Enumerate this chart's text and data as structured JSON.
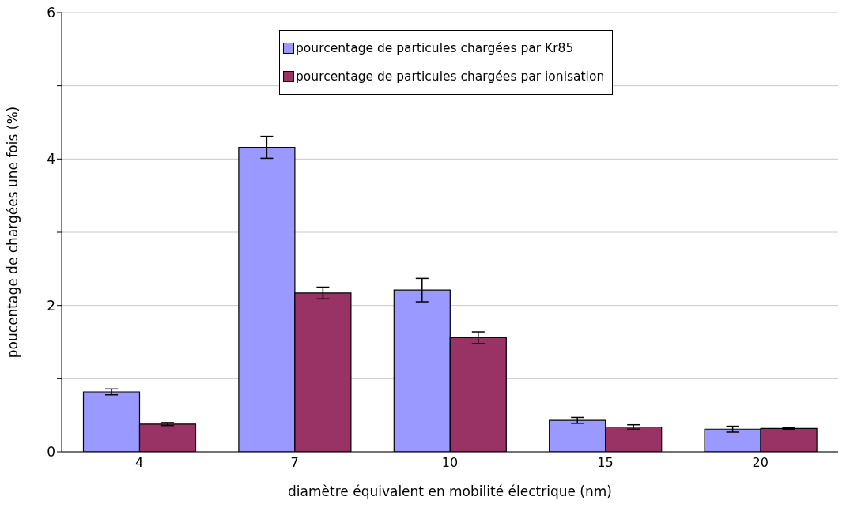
{
  "chart_data": {
    "type": "bar",
    "xlabel": "diamètre équivalent en mobilité électrique (nm)",
    "ylabel": "poucentage de chargées une fois (%)",
    "categories": [
      "4",
      "7",
      "10",
      "15",
      "20"
    ],
    "series": [
      {
        "name": "pourcentage de particules chargées par Kr85",
        "color": "#9999ff",
        "values": [
          0.82,
          4.16,
          2.21,
          0.43,
          0.31
        ],
        "errors": [
          0.04,
          0.15,
          0.16,
          0.04,
          0.04
        ]
      },
      {
        "name": "pourcentage de particules chargées par ionisation",
        "color": "#993366",
        "values": [
          0.38,
          2.17,
          1.56,
          0.34,
          0.32
        ],
        "errors": [
          0.02,
          0.08,
          0.08,
          0.03,
          0.01
        ]
      }
    ],
    "ylim": [
      0,
      6
    ],
    "yticks": [
      0,
      {
        "value": 1,
        "label": null
      },
      2,
      {
        "value": 3,
        "label": null
      },
      4,
      {
        "value": 5,
        "label": null
      },
      6
    ],
    "grid": "y",
    "legend": "top"
  }
}
